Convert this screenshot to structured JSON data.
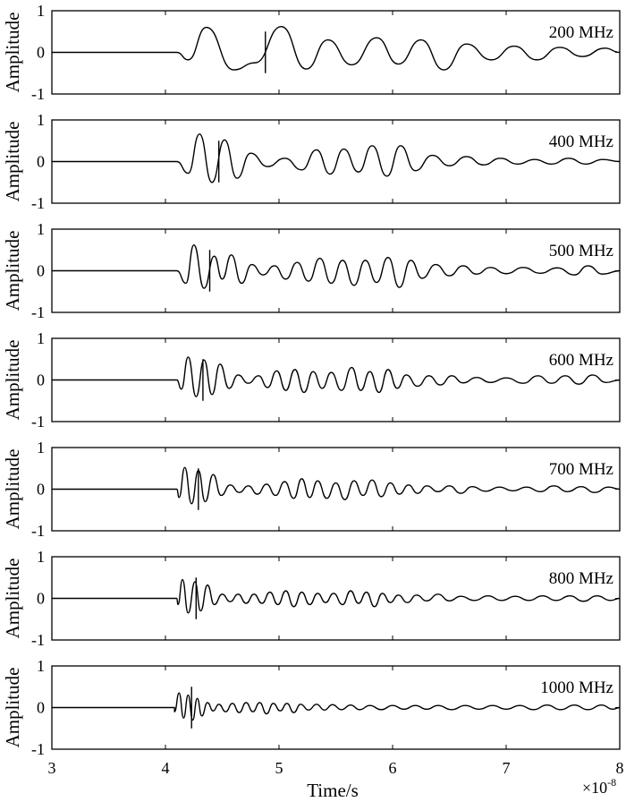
{
  "chart_data": {
    "type": "line",
    "layout": "7 vertically stacked panels, shared x-axis",
    "xlabel": "Time/s",
    "x_scale_label": "×10",
    "x_scale_exponent": "-8",
    "xlim": [
      3,
      8
    ],
    "x_ticks": [
      "3",
      "4",
      "5",
      "6",
      "7",
      "8"
    ],
    "ylabel": "Amplitude",
    "ylim": [
      -1,
      1
    ],
    "y_ticks": [
      "-1",
      "0",
      "1"
    ],
    "grid": false,
    "panels": [
      {
        "label": "200 MHz",
        "freq_mhz": 200,
        "marker_time": 4.88,
        "onset": 4.1,
        "peaks": [
          [
            4.2,
            -0.18
          ],
          [
            4.36,
            0.6
          ],
          [
            4.6,
            -0.42
          ],
          [
            4.79,
            -0.25
          ],
          [
            5.02,
            0.62
          ],
          [
            5.24,
            -0.4
          ],
          [
            5.43,
            0.3
          ],
          [
            5.64,
            -0.3
          ],
          [
            5.86,
            0.35
          ],
          [
            6.05,
            -0.28
          ],
          [
            6.25,
            0.3
          ],
          [
            6.45,
            -0.42
          ],
          [
            6.65,
            0.2
          ],
          [
            6.87,
            -0.18
          ],
          [
            7.07,
            0.15
          ],
          [
            7.27,
            -0.18
          ],
          [
            7.47,
            0.12
          ],
          [
            7.67,
            -0.1
          ],
          [
            7.87,
            0.1
          ]
        ]
      },
      {
        "label": "400 MHz",
        "freq_mhz": 400,
        "marker_time": 4.47,
        "onset": 4.1,
        "peaks": [
          [
            4.2,
            -0.28
          ],
          [
            4.3,
            0.66
          ],
          [
            4.41,
            -0.5
          ],
          [
            4.52,
            0.52
          ],
          [
            4.63,
            -0.4
          ],
          [
            4.75,
            0.2
          ],
          [
            4.9,
            -0.12
          ],
          [
            5.05,
            0.08
          ],
          [
            5.2,
            -0.2
          ],
          [
            5.33,
            0.28
          ],
          [
            5.45,
            -0.3
          ],
          [
            5.57,
            0.3
          ],
          [
            5.7,
            -0.25
          ],
          [
            5.82,
            0.38
          ],
          [
            5.95,
            -0.35
          ],
          [
            6.07,
            0.38
          ],
          [
            6.2,
            -0.22
          ],
          [
            6.35,
            0.15
          ],
          [
            6.5,
            -0.1
          ],
          [
            6.65,
            0.12
          ],
          [
            6.8,
            -0.08
          ],
          [
            6.95,
            0.08
          ],
          [
            7.1,
            -0.06
          ],
          [
            7.25,
            0.05
          ],
          [
            7.4,
            -0.06
          ],
          [
            7.55,
            0.08
          ],
          [
            7.7,
            -0.06
          ],
          [
            7.85,
            0.05
          ]
        ]
      },
      {
        "label": "500 MHz",
        "freq_mhz": 500,
        "marker_time": 4.39,
        "onset": 4.1,
        "peaks": [
          [
            4.18,
            -0.3
          ],
          [
            4.25,
            0.62
          ],
          [
            4.34,
            -0.42
          ],
          [
            4.43,
            0.35
          ],
          [
            4.5,
            -0.2
          ],
          [
            4.58,
            0.38
          ],
          [
            4.67,
            -0.3
          ],
          [
            4.76,
            0.15
          ],
          [
            4.86,
            -0.1
          ],
          [
            4.96,
            0.12
          ],
          [
            5.06,
            -0.2
          ],
          [
            5.16,
            0.2
          ],
          [
            5.26,
            -0.25
          ],
          [
            5.36,
            0.3
          ],
          [
            5.46,
            -0.3
          ],
          [
            5.56,
            0.25
          ],
          [
            5.66,
            -0.35
          ],
          [
            5.76,
            0.25
          ],
          [
            5.86,
            -0.28
          ],
          [
            5.96,
            0.32
          ],
          [
            6.06,
            -0.4
          ],
          [
            6.16,
            0.25
          ],
          [
            6.26,
            -0.18
          ],
          [
            6.38,
            0.15
          ],
          [
            6.5,
            -0.12
          ],
          [
            6.62,
            0.12
          ],
          [
            6.74,
            -0.08
          ],
          [
            6.86,
            0.08
          ],
          [
            7.0,
            -0.07
          ],
          [
            7.15,
            0.08
          ],
          [
            7.3,
            -0.06
          ],
          [
            7.45,
            0.07
          ],
          [
            7.6,
            -0.1
          ],
          [
            7.72,
            0.12
          ],
          [
            7.85,
            -0.08
          ]
        ]
      },
      {
        "label": "600 MHz",
        "freq_mhz": 600,
        "marker_time": 4.33,
        "onset": 4.1,
        "peaks": [
          [
            4.14,
            -0.22
          ],
          [
            4.2,
            0.55
          ],
          [
            4.27,
            -0.4
          ],
          [
            4.34,
            0.48
          ],
          [
            4.41,
            -0.35
          ],
          [
            4.48,
            0.38
          ],
          [
            4.56,
            -0.2
          ],
          [
            4.64,
            0.12
          ],
          [
            4.73,
            -0.08
          ],
          [
            4.82,
            0.1
          ],
          [
            4.9,
            -0.18
          ],
          [
            4.98,
            0.22
          ],
          [
            5.06,
            -0.25
          ],
          [
            5.14,
            0.25
          ],
          [
            5.22,
            -0.3
          ],
          [
            5.3,
            0.2
          ],
          [
            5.38,
            -0.2
          ],
          [
            5.46,
            0.18
          ],
          [
            5.55,
            -0.25
          ],
          [
            5.64,
            0.3
          ],
          [
            5.72,
            -0.25
          ],
          [
            5.8,
            0.2
          ],
          [
            5.88,
            -0.3
          ],
          [
            5.96,
            0.25
          ],
          [
            6.04,
            -0.2
          ],
          [
            6.12,
            0.12
          ],
          [
            6.22,
            -0.15
          ],
          [
            6.32,
            0.1
          ],
          [
            6.42,
            -0.12
          ],
          [
            6.52,
            0.1
          ],
          [
            6.62,
            -0.07
          ],
          [
            6.74,
            0.06
          ],
          [
            6.86,
            -0.06
          ],
          [
            7.0,
            0.05
          ],
          [
            7.15,
            -0.08
          ],
          [
            7.28,
            0.1
          ],
          [
            7.4,
            -0.08
          ],
          [
            7.52,
            0.1
          ],
          [
            7.64,
            -0.1
          ],
          [
            7.76,
            0.12
          ],
          [
            7.88,
            -0.06
          ]
        ]
      },
      {
        "label": "700 MHz",
        "freq_mhz": 700,
        "marker_time": 4.29,
        "onset": 4.1,
        "peaks": [
          [
            4.12,
            -0.2
          ],
          [
            4.17,
            0.52
          ],
          [
            4.23,
            -0.35
          ],
          [
            4.29,
            0.45
          ],
          [
            4.35,
            -0.3
          ],
          [
            4.42,
            0.35
          ],
          [
            4.49,
            -0.15
          ],
          [
            4.57,
            0.1
          ],
          [
            4.65,
            -0.08
          ],
          [
            4.73,
            0.08
          ],
          [
            4.81,
            -0.12
          ],
          [
            4.89,
            0.12
          ],
          [
            4.97,
            -0.15
          ],
          [
            5.05,
            0.18
          ],
          [
            5.13,
            -0.22
          ],
          [
            5.2,
            0.25
          ],
          [
            5.27,
            -0.2
          ],
          [
            5.34,
            0.2
          ],
          [
            5.42,
            -0.22
          ],
          [
            5.5,
            0.15
          ],
          [
            5.58,
            -0.25
          ],
          [
            5.66,
            0.2
          ],
          [
            5.74,
            -0.15
          ],
          [
            5.82,
            0.22
          ],
          [
            5.9,
            -0.18
          ],
          [
            5.98,
            0.15
          ],
          [
            6.06,
            -0.12
          ],
          [
            6.14,
            0.1
          ],
          [
            6.22,
            -0.1
          ],
          [
            6.3,
            0.08
          ],
          [
            6.4,
            -0.06
          ],
          [
            6.5,
            0.08
          ],
          [
            6.6,
            -0.1
          ],
          [
            6.7,
            0.06
          ],
          [
            6.82,
            -0.05
          ],
          [
            6.94,
            0.05
          ],
          [
            7.06,
            -0.04
          ],
          [
            7.18,
            0.05
          ],
          [
            7.3,
            -0.06
          ],
          [
            7.42,
            0.08
          ],
          [
            7.54,
            -0.06
          ],
          [
            7.66,
            0.06
          ],
          [
            7.78,
            -0.08
          ],
          [
            7.9,
            0.05
          ]
        ]
      },
      {
        "label": "800 MHz",
        "freq_mhz": 800,
        "marker_time": 4.27,
        "onset": 4.1,
        "peaks": [
          [
            4.11,
            -0.15
          ],
          [
            4.15,
            0.45
          ],
          [
            4.2,
            -0.35
          ],
          [
            4.26,
            0.4
          ],
          [
            4.31,
            -0.3
          ],
          [
            4.37,
            0.32
          ],
          [
            4.43,
            -0.15
          ],
          [
            4.5,
            0.1
          ],
          [
            4.57,
            -0.08
          ],
          [
            4.64,
            0.1
          ],
          [
            4.71,
            -0.12
          ],
          [
            4.78,
            0.1
          ],
          [
            4.85,
            -0.12
          ],
          [
            4.92,
            0.15
          ],
          [
            4.99,
            -0.15
          ],
          [
            5.06,
            0.18
          ],
          [
            5.13,
            -0.2
          ],
          [
            5.2,
            0.15
          ],
          [
            5.27,
            -0.15
          ],
          [
            5.34,
            0.12
          ],
          [
            5.41,
            -0.1
          ],
          [
            5.48,
            0.12
          ],
          [
            5.56,
            -0.15
          ],
          [
            5.63,
            0.18
          ],
          [
            5.7,
            -0.12
          ],
          [
            5.77,
            0.15
          ],
          [
            5.84,
            -0.2
          ],
          [
            5.91,
            0.12
          ],
          [
            5.98,
            -0.1
          ],
          [
            6.05,
            0.08
          ],
          [
            6.13,
            -0.1
          ],
          [
            6.21,
            0.08
          ],
          [
            6.3,
            -0.06
          ],
          [
            6.4,
            0.1
          ],
          [
            6.5,
            -0.06
          ],
          [
            6.6,
            0.05
          ],
          [
            6.72,
            -0.05
          ],
          [
            6.84,
            0.06
          ],
          [
            6.96,
            -0.05
          ],
          [
            7.08,
            0.05
          ],
          [
            7.2,
            -0.05
          ],
          [
            7.32,
            0.06
          ],
          [
            7.44,
            -0.05
          ],
          [
            7.56,
            0.06
          ],
          [
            7.68,
            -0.07
          ],
          [
            7.8,
            0.06
          ],
          [
            7.92,
            -0.05
          ]
        ]
      },
      {
        "label": "1000 MHz",
        "freq_mhz": 1000,
        "marker_time": 4.23,
        "onset": 4.08,
        "peaks": [
          [
            4.08,
            -0.1
          ],
          [
            4.12,
            0.35
          ],
          [
            4.16,
            -0.25
          ],
          [
            4.2,
            0.3
          ],
          [
            4.24,
            -0.3
          ],
          [
            4.28,
            0.22
          ],
          [
            4.32,
            -0.2
          ],
          [
            4.37,
            0.12
          ],
          [
            4.42,
            -0.08
          ],
          [
            4.47,
            0.08
          ],
          [
            4.53,
            -0.1
          ],
          [
            4.59,
            0.1
          ],
          [
            4.65,
            -0.12
          ],
          [
            4.71,
            0.12
          ],
          [
            4.77,
            -0.1
          ],
          [
            4.83,
            0.12
          ],
          [
            4.89,
            -0.15
          ],
          [
            4.95,
            0.1
          ],
          [
            5.01,
            -0.08
          ],
          [
            5.07,
            0.1
          ],
          [
            5.13,
            -0.12
          ],
          [
            5.19,
            0.08
          ],
          [
            5.26,
            -0.06
          ],
          [
            5.33,
            0.08
          ],
          [
            5.4,
            -0.06
          ],
          [
            5.47,
            0.07
          ],
          [
            5.55,
            -0.05
          ],
          [
            5.63,
            0.06
          ],
          [
            5.71,
            -0.05
          ],
          [
            5.8,
            0.05
          ],
          [
            5.9,
            -0.05
          ],
          [
            6.0,
            0.05
          ],
          [
            6.1,
            -0.04
          ],
          [
            6.2,
            0.05
          ],
          [
            6.3,
            -0.04
          ],
          [
            6.4,
            0.05
          ],
          [
            6.52,
            -0.05
          ],
          [
            6.64,
            0.05
          ],
          [
            6.76,
            -0.04
          ],
          [
            6.88,
            0.05
          ],
          [
            7.0,
            -0.04
          ],
          [
            7.12,
            0.05
          ],
          [
            7.24,
            -0.05
          ],
          [
            7.36,
            0.06
          ],
          [
            7.48,
            -0.05
          ],
          [
            7.6,
            0.06
          ],
          [
            7.72,
            -0.05
          ],
          [
            7.84,
            0.06
          ],
          [
            7.94,
            -0.04
          ]
        ]
      }
    ]
  }
}
